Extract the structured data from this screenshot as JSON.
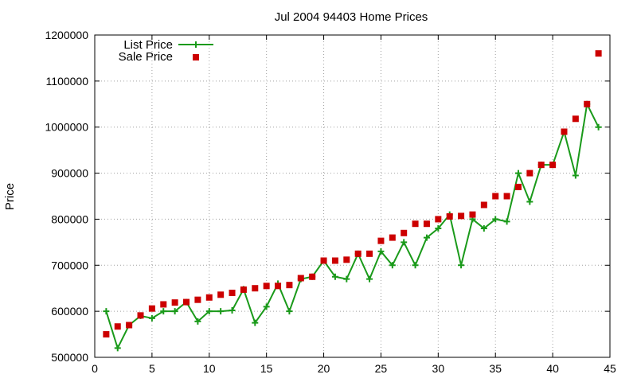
{
  "chart_data": {
    "type": "scatter",
    "title": "Jul 2004 94403 Home Prices",
    "xlabel": "",
    "ylabel": "Price",
    "xlim": [
      0,
      45
    ],
    "ylim": [
      500000,
      1200000
    ],
    "x_ticks": [
      0,
      5,
      10,
      15,
      20,
      25,
      30,
      35,
      40,
      45
    ],
    "y_ticks": [
      500000,
      600000,
      700000,
      800000,
      900000,
      1000000,
      1100000,
      1200000
    ],
    "grid": true,
    "legend_position": "top-left",
    "series": [
      {
        "name": "List Price",
        "style": "linespoints",
        "marker": "plus",
        "color": "#1a9a1a",
        "x": [
          1,
          2,
          3,
          4,
          5,
          6,
          7,
          8,
          9,
          10,
          11,
          12,
          13,
          14,
          15,
          16,
          17,
          18,
          19,
          20,
          21,
          22,
          23,
          24,
          25,
          26,
          27,
          28,
          29,
          30,
          31,
          32,
          33,
          34,
          35,
          36,
          37,
          38,
          39,
          40,
          41,
          42,
          43,
          44
        ],
        "y": [
          600000,
          520000,
          570000,
          590000,
          585000,
          600000,
          600000,
          620000,
          578000,
          600000,
          600000,
          602000,
          648000,
          575000,
          610000,
          660000,
          600000,
          670000,
          675000,
          710000,
          675000,
          670000,
          725000,
          670000,
          730000,
          700000,
          750000,
          700000,
          760000,
          780000,
          810000,
          700000,
          800000,
          780000,
          800000,
          795000,
          900000,
          838000,
          918000,
          918000,
          990000,
          895000,
          1050000,
          1000000
        ]
      },
      {
        "name": "Sale Price",
        "style": "points",
        "marker": "square",
        "color": "#cc0000",
        "x": [
          1,
          2,
          3,
          4,
          5,
          6,
          7,
          8,
          9,
          10,
          11,
          12,
          13,
          14,
          15,
          16,
          17,
          18,
          19,
          20,
          21,
          22,
          23,
          24,
          25,
          26,
          27,
          28,
          29,
          30,
          31,
          32,
          33,
          34,
          35,
          36,
          37,
          38,
          39,
          40,
          41,
          42,
          43,
          44
        ],
        "y": [
          550000,
          567000,
          570000,
          591000,
          606000,
          615000,
          619000,
          620000,
          625000,
          630000,
          636000,
          640000,
          647000,
          650000,
          655000,
          655000,
          657000,
          672000,
          675000,
          710000,
          710000,
          712000,
          725000,
          725000,
          753000,
          760000,
          770000,
          790000,
          790000,
          800000,
          806000,
          807000,
          810000,
          831000,
          850000,
          850000,
          870000,
          900000,
          918000,
          918000,
          990000,
          1018000,
          1050000,
          1160000
        ]
      }
    ]
  }
}
